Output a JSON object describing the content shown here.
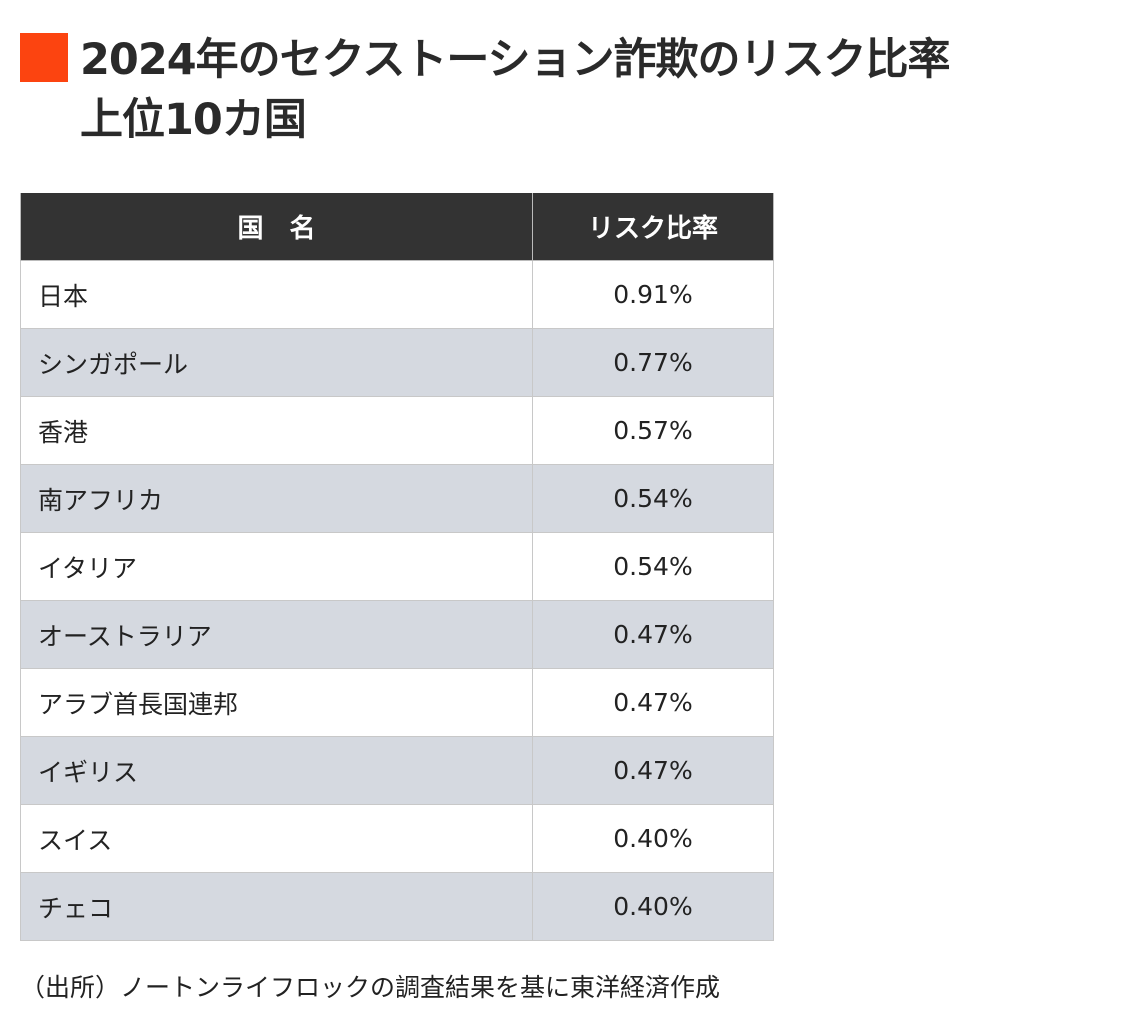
{
  "accent_color": "#fc4410",
  "title_line1": "2024年のセクストーション詐欺のリスク比率",
  "title_line2": "上位10カ国",
  "chart_data": {
    "type": "table",
    "title": "2024年のセクストーション詐欺のリスク比率上位10カ国",
    "columns": [
      "国　名",
      "リスク比率"
    ],
    "rows": [
      {
        "country": "日本",
        "rate": "0.91%"
      },
      {
        "country": "シンガポール",
        "rate": "0.77%"
      },
      {
        "country": "香港",
        "rate": "0.57%"
      },
      {
        "country": "南アフリカ",
        "rate": "0.54%"
      },
      {
        "country": "イタリア",
        "rate": "0.54%"
      },
      {
        "country": "オーストラリア",
        "rate": "0.47%"
      },
      {
        "country": "アラブ首長国連邦",
        "rate": "0.47%"
      },
      {
        "country": "イギリス",
        "rate": "0.47%"
      },
      {
        "country": "スイス",
        "rate": "0.40%"
      },
      {
        "country": "チェコ",
        "rate": "0.40%"
      }
    ],
    "header_color": "#333333",
    "stripe_color": "#d5d9e0"
  },
  "source_note": "（出所）ノートンライフロックの調査結果を基に東洋経済作成"
}
